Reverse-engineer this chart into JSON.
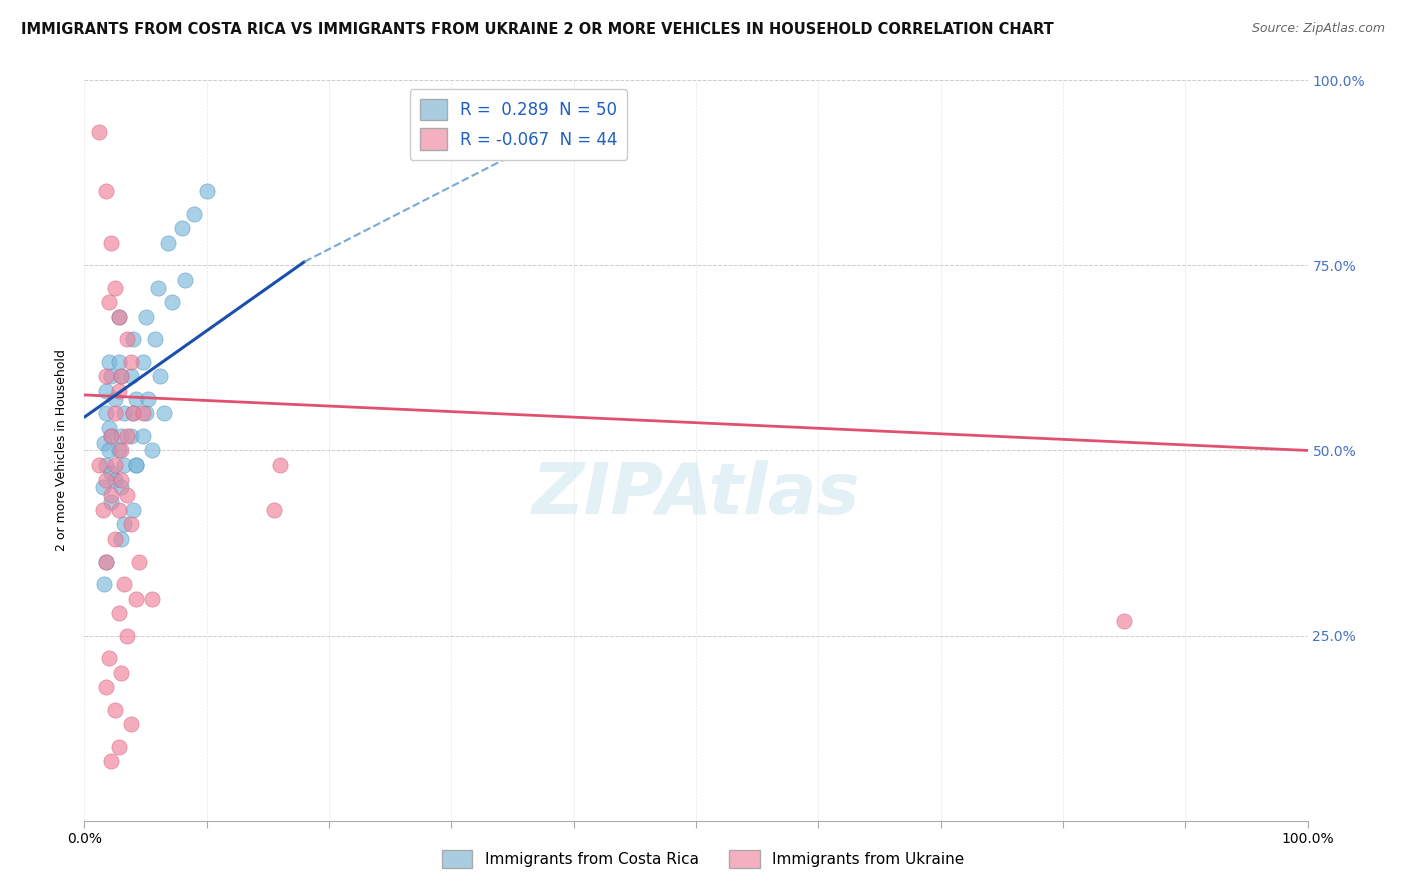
{
  "title": "IMMIGRANTS FROM COSTA RICA VS IMMIGRANTS FROM UKRAINE 2 OR MORE VEHICLES IN HOUSEHOLD CORRELATION CHART",
  "source": "Source: ZipAtlas.com",
  "ylabel": "2 or more Vehicles in Household",
  "xlim": [
    0,
    1.0
  ],
  "ylim": [
    0,
    1.0
  ],
  "yticks": [
    0.0,
    0.25,
    0.5,
    0.75,
    1.0
  ],
  "ytick_labels_right": [
    "",
    "25.0%",
    "50.0%",
    "75.0%",
    "100.0%"
  ],
  "xtick_positions": [
    0.0,
    0.1,
    0.2,
    0.3,
    0.4,
    0.5,
    0.6,
    0.7,
    0.8,
    0.9,
    1.0
  ],
  "costa_rica_color": "#7ab8d9",
  "ukraine_color": "#f08098",
  "costa_rica_legend_color": "#a8cce0",
  "ukraine_legend_color": "#f4b0c0",
  "legend_r1": "R =  0.289  N = 50",
  "legend_r2": "R = -0.067  N = 44",
  "legend_r1_color": "#2060c0",
  "legend_r2_color": "#e04060",
  "legend_n_color": "#2060c0",
  "costa_rica_points": [
    [
      0.02,
      0.62
    ],
    [
      0.018,
      0.58
    ],
    [
      0.022,
      0.6
    ],
    [
      0.025,
      0.57
    ],
    [
      0.018,
      0.55
    ],
    [
      0.02,
      0.53
    ],
    [
      0.022,
      0.52
    ],
    [
      0.016,
      0.51
    ],
    [
      0.02,
      0.5
    ],
    [
      0.018,
      0.48
    ],
    [
      0.022,
      0.47
    ],
    [
      0.025,
      0.46
    ],
    [
      0.015,
      0.45
    ],
    [
      0.03,
      0.6
    ],
    [
      0.028,
      0.62
    ],
    [
      0.032,
      0.55
    ],
    [
      0.03,
      0.52
    ],
    [
      0.028,
      0.5
    ],
    [
      0.032,
      0.48
    ],
    [
      0.03,
      0.45
    ],
    [
      0.028,
      0.68
    ],
    [
      0.04,
      0.65
    ],
    [
      0.038,
      0.6
    ],
    [
      0.042,
      0.57
    ],
    [
      0.04,
      0.55
    ],
    [
      0.038,
      0.52
    ],
    [
      0.042,
      0.48
    ],
    [
      0.05,
      0.68
    ],
    [
      0.048,
      0.62
    ],
    [
      0.052,
      0.57
    ],
    [
      0.05,
      0.55
    ],
    [
      0.048,
      0.52
    ],
    [
      0.06,
      0.72
    ],
    [
      0.058,
      0.65
    ],
    [
      0.062,
      0.6
    ],
    [
      0.068,
      0.78
    ],
    [
      0.072,
      0.7
    ],
    [
      0.08,
      0.8
    ],
    [
      0.082,
      0.73
    ],
    [
      0.09,
      0.82
    ],
    [
      0.1,
      0.85
    ],
    [
      0.03,
      0.38
    ],
    [
      0.018,
      0.35
    ],
    [
      0.04,
      0.42
    ],
    [
      0.032,
      0.4
    ],
    [
      0.016,
      0.32
    ],
    [
      0.042,
      0.48
    ],
    [
      0.055,
      0.5
    ],
    [
      0.065,
      0.55
    ],
    [
      0.022,
      0.43
    ]
  ],
  "ukraine_points": [
    [
      0.012,
      0.93
    ],
    [
      0.018,
      0.85
    ],
    [
      0.022,
      0.78
    ],
    [
      0.025,
      0.72
    ],
    [
      0.02,
      0.7
    ],
    [
      0.028,
      0.68
    ],
    [
      0.035,
      0.65
    ],
    [
      0.038,
      0.62
    ],
    [
      0.018,
      0.6
    ],
    [
      0.028,
      0.58
    ],
    [
      0.04,
      0.55
    ],
    [
      0.025,
      0.55
    ],
    [
      0.035,
      0.52
    ],
    [
      0.022,
      0.52
    ],
    [
      0.03,
      0.5
    ],
    [
      0.025,
      0.48
    ],
    [
      0.018,
      0.46
    ],
    [
      0.03,
      0.46
    ],
    [
      0.022,
      0.44
    ],
    [
      0.035,
      0.44
    ],
    [
      0.015,
      0.42
    ],
    [
      0.028,
      0.42
    ],
    [
      0.038,
      0.4
    ],
    [
      0.025,
      0.38
    ],
    [
      0.018,
      0.35
    ],
    [
      0.032,
      0.32
    ],
    [
      0.042,
      0.3
    ],
    [
      0.028,
      0.28
    ],
    [
      0.035,
      0.25
    ],
    [
      0.02,
      0.22
    ],
    [
      0.03,
      0.2
    ],
    [
      0.018,
      0.18
    ],
    [
      0.025,
      0.15
    ],
    [
      0.038,
      0.13
    ],
    [
      0.028,
      0.1
    ],
    [
      0.022,
      0.08
    ],
    [
      0.85,
      0.27
    ],
    [
      0.055,
      0.3
    ],
    [
      0.048,
      0.55
    ],
    [
      0.16,
      0.48
    ],
    [
      0.012,
      0.48
    ],
    [
      0.155,
      0.42
    ],
    [
      0.045,
      0.35
    ],
    [
      0.03,
      0.6
    ]
  ],
  "blue_line_solid": [
    [
      0.0,
      0.545
    ],
    [
      0.18,
      0.755
    ]
  ],
  "blue_line_dashed": [
    [
      0.18,
      0.755
    ],
    [
      0.44,
      0.975
    ]
  ],
  "pink_line": [
    [
      0.0,
      0.575
    ],
    [
      1.0,
      0.5
    ]
  ],
  "background_color": "#ffffff",
  "grid_color": "#cccccc",
  "title_fontsize": 10.5,
  "axis_label_fontsize": 9,
  "tick_fontsize": 10,
  "right_tick_color": "#4472c4",
  "watermark_text": "ZIPAtlas",
  "watermark_color": "#cde4f0",
  "watermark_alpha": 0.55
}
